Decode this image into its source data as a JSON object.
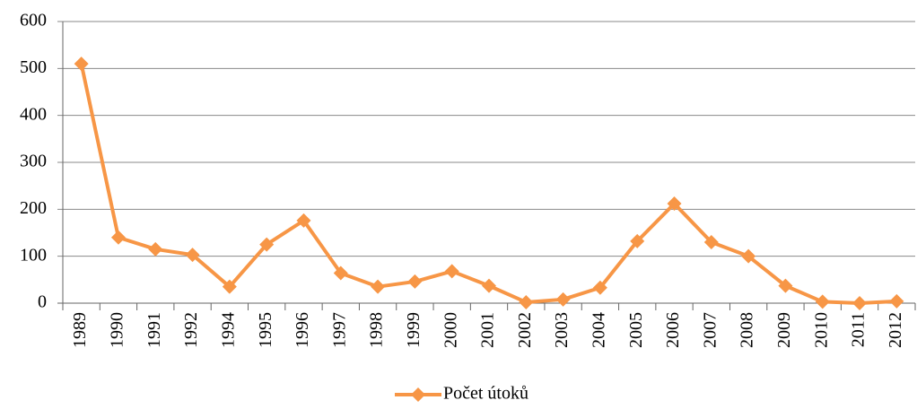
{
  "chart_data": {
    "type": "line",
    "categories": [
      "1989",
      "1990",
      "1991",
      "1992",
      "1994",
      "1995",
      "1996",
      "1997",
      "1998",
      "1999",
      "2000",
      "2001",
      "2002",
      "2003",
      "2004",
      "2005",
      "2006",
      "2007",
      "2008",
      "2009",
      "2010",
      "2011",
      "2012"
    ],
    "series": [
      {
        "name": "Počet útoků",
        "color": "#f79646",
        "values": [
          510,
          140,
          115,
          103,
          35,
          125,
          176,
          64,
          35,
          46,
          68,
          37,
          2,
          8,
          33,
          132,
          212,
          130,
          100,
          37,
          3,
          0,
          4
        ]
      }
    ],
    "ylim": [
      0,
      600
    ],
    "yticks": [
      0,
      100,
      200,
      300,
      400,
      500,
      600
    ],
    "grid": true,
    "legend": "bottom"
  }
}
